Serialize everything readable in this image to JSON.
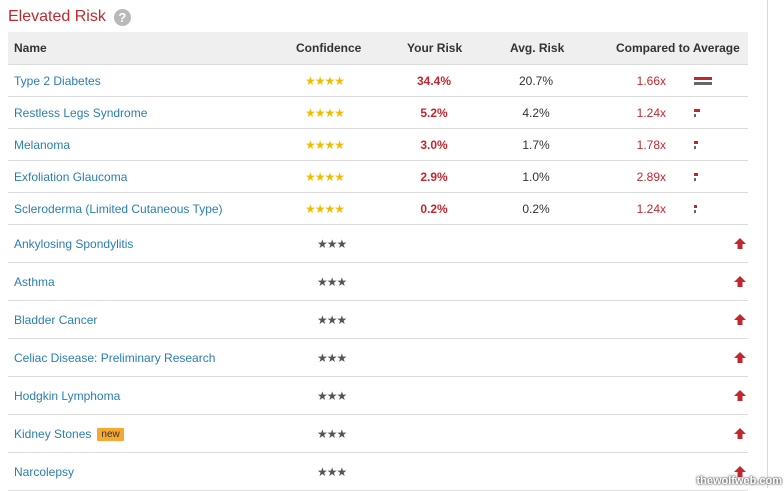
{
  "section": {
    "title": "Elevated Risk",
    "help_glyph": "?"
  },
  "table": {
    "columns": {
      "name": "Name",
      "confidence": "Confidence",
      "your_risk": "Your Risk",
      "avg_risk": "Avg. Risk",
      "compared": "Compared to Average"
    },
    "rows_full": [
      {
        "name": "Type 2 Diabetes",
        "stars": "★★★★",
        "your_risk": "34.4%",
        "avg_risk": "20.7%",
        "compared": "1.66x",
        "bar_level": 0.66
      },
      {
        "name": "Restless Legs Syndrome",
        "stars": "★★★★",
        "your_risk": "5.2%",
        "avg_risk": "4.2%",
        "compared": "1.24x",
        "bar_level": 0.24
      },
      {
        "name": "Melanoma",
        "stars": "★★★★",
        "your_risk": "3.0%",
        "avg_risk": "1.7%",
        "compared": "1.78x",
        "bar_level": 0.15
      },
      {
        "name": "Exfoliation Glaucoma",
        "stars": "★★★★",
        "your_risk": "2.9%",
        "avg_risk": "1.0%",
        "compared": "2.89x",
        "bar_level": 0.15
      },
      {
        "name": "Scleroderma (Limited Cutaneous Type)",
        "stars": "★★★★",
        "your_risk": "0.2%",
        "avg_risk": "0.2%",
        "compared": "1.24x",
        "bar_level": 0.1
      }
    ],
    "rows_simple": [
      {
        "name": "Ankylosing Spondylitis",
        "stars": "★★★"
      },
      {
        "name": "Asthma",
        "stars": "★★★"
      },
      {
        "name": "Bladder Cancer",
        "stars": "★★★"
      },
      {
        "name": "Celiac Disease: Preliminary Research",
        "stars": "★★★"
      },
      {
        "name": "Hodgkin Lymphoma",
        "stars": "★★★"
      },
      {
        "name": "Kidney Stones",
        "stars": "★★★",
        "badge": "new"
      },
      {
        "name": "Narcolepsy",
        "stars": "★★★"
      }
    ]
  },
  "colors": {
    "accent_red": "#c0282d",
    "link_blue": "#2a7fb1",
    "star_gold": "#f1bd00",
    "badge_orange": "#f7a832"
  },
  "icons": {
    "help": "question-circle-icon",
    "elevated": "red-up-arrow-icon",
    "comparison": "comparison-bar-icon"
  },
  "watermark": "thewolfweb.com"
}
